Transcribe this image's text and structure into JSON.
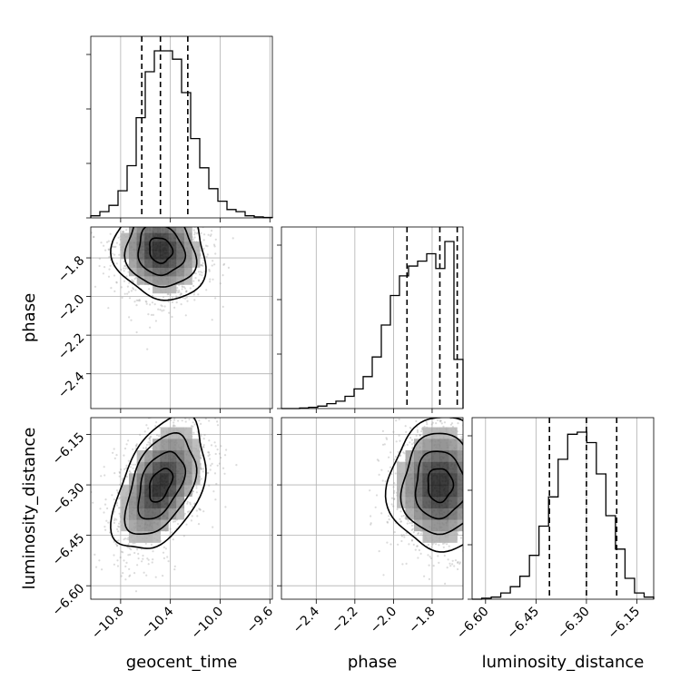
{
  "chart_data": {
    "type": "corner",
    "parameters": [
      "geocent_time",
      "phase",
      "luminosity_distance"
    ],
    "axis_labels": {
      "x": [
        "geocent_time",
        "phase",
        "luminosity_distance"
      ],
      "y": [
        "phase",
        "luminosity_distance"
      ]
    },
    "ranges": {
      "geocent_time": [
        -11.04,
        -9.58
      ],
      "phase": [
        -2.58,
        -1.64
      ],
      "luminosity_distance": [
        -6.64,
        -6.1
      ]
    },
    "ticks": {
      "geocent_time": [
        -10.8,
        -10.4,
        -10.0,
        -9.6
      ],
      "phase": [
        -2.4,
        -2.2,
        -2.0,
        -1.8
      ],
      "luminosity_distance": [
        -6.6,
        -6.45,
        -6.3,
        -6.15
      ]
    },
    "tick_labels": {
      "geocent_time": [
        "−10.8",
        "−10.4",
        "−10.0",
        "−9.6"
      ],
      "phase": [
        "−2.4",
        "−2.2",
        "−2.0",
        "−1.8"
      ],
      "luminosity_distance": [
        "−6.60",
        "−6.45",
        "−6.30",
        "−6.15"
      ]
    },
    "grid": true,
    "histograms": {
      "geocent_time": {
        "counts": [
          1,
          3,
          6,
          13,
          25,
          48,
          70,
          80,
          80,
          76,
          60,
          38,
          24,
          14,
          8,
          4,
          3,
          1,
          0.5,
          0.2
        ],
        "quantiles": [
          -10.63,
          -10.48,
          -10.26
        ]
      },
      "phase": {
        "counts": [
          0,
          0,
          0.2,
          0.5,
          1,
          2,
          3,
          5,
          8,
          13,
          21,
          34,
          46,
          54,
          58,
          60,
          63,
          57,
          68,
          20
        ],
        "quantiles": [
          -1.93,
          -1.76,
          -1.67
        ]
      },
      "luminosity_distance": {
        "counts": [
          0,
          0.5,
          1,
          3,
          6,
          11,
          21,
          35,
          49,
          67,
          79,
          80,
          75,
          60,
          40,
          24,
          10,
          3,
          1
        ],
        "quantiles": [
          -6.41,
          -6.3,
          -6.21
        ]
      }
    },
    "correlations": {
      "phase|geocent_time": -0.1,
      "luminosity_distance|geocent_time": 0.45,
      "luminosity_distance|phase": 0.0
    },
    "contour_levels_sigma": [
      0.5,
      1.0,
      1.5,
      2.0
    ]
  }
}
